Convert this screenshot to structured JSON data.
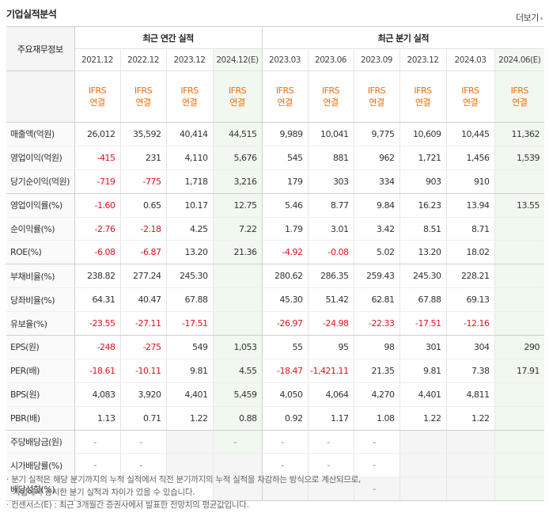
{
  "title": "기업실적분석",
  "more_label": "더보기",
  "row_header_label": "주요재무정보",
  "annual_group_label": "최근 연간 실적",
  "quarter_group_label": "최근 분기 실적",
  "columns": [
    {
      "period": "2021.12",
      "ifrs": "IFRS",
      "basis": "연결"
    },
    {
      "period": "2022.12",
      "ifrs": "IFRS",
      "basis": "연결"
    },
    {
      "period": "2023.12",
      "ifrs": "IFRS",
      "basis": "연결"
    },
    {
      "period": "2024.12(E)",
      "ifrs": "IFRS",
      "basis": "연결"
    },
    {
      "period": "2023.03",
      "ifrs": "IFRS",
      "basis": "연결"
    },
    {
      "period": "2023.06",
      "ifrs": "IFRS",
      "basis": "연결"
    },
    {
      "period": "2023.09",
      "ifrs": "IFRS",
      "basis": "연결"
    },
    {
      "period": "2023.12",
      "ifrs": "IFRS",
      "basis": "연결"
    },
    {
      "period": "2024.03",
      "ifrs": "IFRS",
      "basis": "연결"
    },
    {
      "period": "2024.06(E)",
      "ifrs": "IFRS",
      "basis": "연결"
    }
  ],
  "estimate_columns": [
    3,
    9
  ],
  "rows": [
    {
      "label": "매출액(억원)",
      "values": [
        "26,012",
        "35,592",
        "40,414",
        "44,515",
        "9,989",
        "10,041",
        "9,775",
        "10,609",
        "10,445",
        "11,362"
      ]
    },
    {
      "label": "영업이익(억원)",
      "values": [
        "-415",
        "231",
        "4,110",
        "5,676",
        "545",
        "881",
        "962",
        "1,721",
        "1,456",
        "1,539"
      ]
    },
    {
      "label": "당기순이익(억원)",
      "values": [
        "-719",
        "-775",
        "1,718",
        "3,216",
        "179",
        "303",
        "334",
        "903",
        "910",
        ""
      ]
    },
    {
      "label": "영업이익률(%)",
      "values": [
        "-1.60",
        "0.65",
        "10.17",
        "12.75",
        "5.46",
        "8.77",
        "9.84",
        "16.23",
        "13.94",
        "13.55"
      ]
    },
    {
      "label": "순이익률(%)",
      "values": [
        "-2.76",
        "-2.18",
        "4.25",
        "7.22",
        "1.79",
        "3.01",
        "3.42",
        "8.51",
        "8.71",
        ""
      ]
    },
    {
      "label": "ROE(%)",
      "values": [
        "-6.08",
        "-6.87",
        "13.20",
        "21.36",
        "-4.92",
        "-0.08",
        "5.02",
        "13.20",
        "18.02",
        ""
      ]
    },
    {
      "label": "부채비율(%)",
      "values": [
        "238.82",
        "277.24",
        "245.30",
        "",
        "280.62",
        "286.35",
        "259.43",
        "245.30",
        "228.21",
        ""
      ]
    },
    {
      "label": "당좌비율(%)",
      "values": [
        "64.31",
        "40.47",
        "67.88",
        "",
        "45.30",
        "51.42",
        "62.81",
        "67.88",
        "69.13",
        ""
      ]
    },
    {
      "label": "유보율(%)",
      "values": [
        "-23.55",
        "-27.11",
        "-17.51",
        "",
        "-26.97",
        "-24.98",
        "-22.33",
        "-17.51",
        "-12.16",
        ""
      ]
    },
    {
      "label": "EPS(원)",
      "values": [
        "-248",
        "-275",
        "549",
        "1,053",
        "55",
        "95",
        "98",
        "301",
        "304",
        "290"
      ]
    },
    {
      "label": "PER(배)",
      "values": [
        "-18.61",
        "-10.11",
        "9.81",
        "4.55",
        "-18.47",
        "-1,421.11",
        "21.35",
        "9.81",
        "7.38",
        "17.91"
      ]
    },
    {
      "label": "BPS(원)",
      "values": [
        "4,083",
        "3,920",
        "4,401",
        "5,459",
        "4,050",
        "4,064",
        "4,270",
        "4,401",
        "4,811",
        ""
      ]
    },
    {
      "label": "PBR(배)",
      "values": [
        "1.13",
        "0.71",
        "1.22",
        "0.88",
        "0.92",
        "1.17",
        "1.08",
        "1.22",
        "1.22",
        ""
      ]
    },
    {
      "label": "주당배당금(원)",
      "values": [
        "-",
        "-",
        "",
        "-",
        "-",
        "-",
        "-",
        "",
        "",
        ""
      ]
    },
    {
      "label": "시가배당률(%)",
      "values": [
        "-",
        "-",
        "",
        "",
        "-",
        "-",
        "-",
        "",
        "",
        ""
      ]
    },
    {
      "label": "배당성향(%)",
      "values": [
        "-",
        "-",
        "-",
        "",
        "",
        "",
        "-",
        "",
        "",
        ""
      ]
    }
  ],
  "grey_cells": [
    [
      13,
      2
    ],
    [
      14,
      2
    ],
    [
      14,
      3
    ],
    [
      15,
      3
    ],
    [
      13,
      7
    ],
    [
      13,
      8
    ],
    [
      14,
      7
    ],
    [
      14,
      8
    ],
    [
      15,
      4
    ],
    [
      15,
      5
    ],
    [
      15,
      6
    ],
    [
      15,
      7
    ],
    [
      15,
      8
    ]
  ],
  "group_end_rows": [
    2,
    5,
    8,
    12
  ],
  "notes": [
    "· 분기 실적은 해당 분기까지의 누적 실적에서 직전 분기까지의 누적 실적을 차감하는 방식으로 계산되므로,",
    "기업에서 공시한 분기 실적과 차이가 있을 수 있습니다.",
    "· 컨센서스(E) : 최근 3개월간 증권사에서 발표한 전망치의 평균값입니다."
  ],
  "colors": {
    "negative": "#e3101f",
    "ifrs": "#ff6a00",
    "estimate_bg": "#f1f8ef"
  }
}
